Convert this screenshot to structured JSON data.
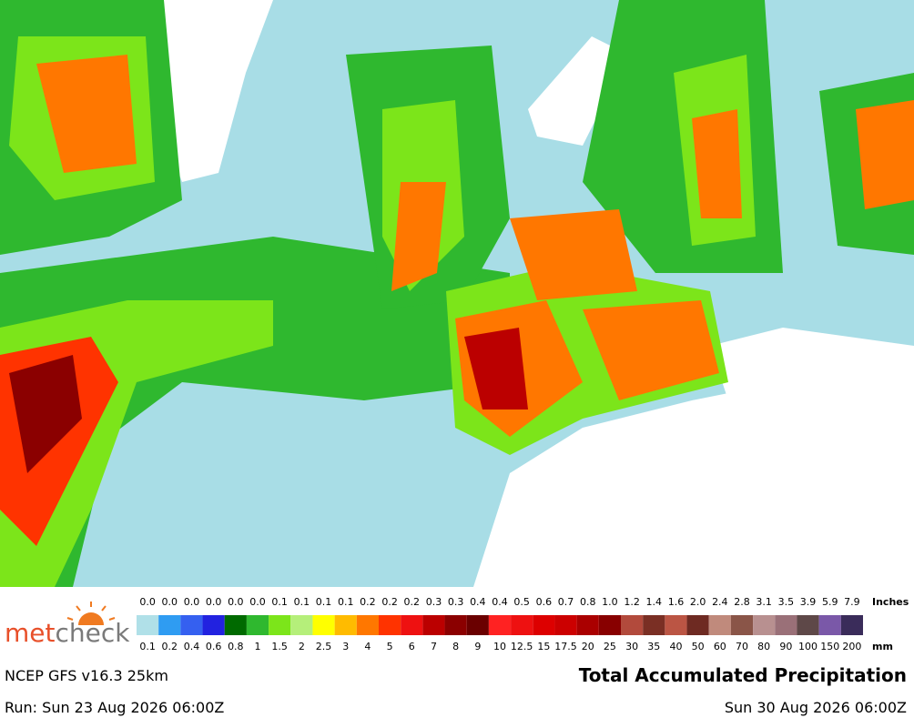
{
  "logo": {
    "part1": "met",
    "part2": "check"
  },
  "legend": {
    "inches_title": "Inches",
    "mm_title": "mm",
    "inches": [
      "0.0",
      "0.0",
      "0.0",
      "0.0",
      "0.0",
      "0.0",
      "0.1",
      "0.1",
      "0.1",
      "0.1",
      "0.2",
      "0.2",
      "0.2",
      "0.3",
      "0.3",
      "0.4",
      "0.4",
      "0.5",
      "0.6",
      "0.7",
      "0.8",
      "1.0",
      "1.2",
      "1.4",
      "1.6",
      "2.0",
      "2.4",
      "2.8",
      "3.1",
      "3.5",
      "3.9",
      "5.9",
      "7.9"
    ],
    "mm": [
      "0.1",
      "0.2",
      "0.4",
      "0.6",
      "0.8",
      "1",
      "1.5",
      "2",
      "2.5",
      "3",
      "4",
      "5",
      "6",
      "7",
      "8",
      "9",
      "10",
      "12.5",
      "15",
      "17.5",
      "20",
      "25",
      "30",
      "35",
      "40",
      "50",
      "60",
      "70",
      "80",
      "90",
      "100",
      "150",
      "200"
    ],
    "colors": [
      "#b0e0e8",
      "#2f9cf2",
      "#3560f0",
      "#2222e0",
      "#006a00",
      "#2fb82f",
      "#7ce51a",
      "#b5ef7a",
      "#ffff00",
      "#ffbb00",
      "#ff7700",
      "#ff3300",
      "#ee1111",
      "#bb0000",
      "#8b0000",
      "#6a0000",
      "#ff2222",
      "#ee1111",
      "#dd0000",
      "#cc0000",
      "#aa0000",
      "#880000",
      "#b24a3c",
      "#7a2f24",
      "#bb5544",
      "#6e2a22",
      "#c08a7c",
      "#8a5548",
      "#b89090",
      "#9a7078",
      "#5e4848",
      "#7a58a8",
      "#3a2c5a"
    ]
  },
  "model": "NCEP GFS v16.3 25km",
  "title": "Total Accumulated Precipitation",
  "run": "Run: Sun 23 Aug 2026 06:00Z",
  "valid": "Sun 30 Aug 2026 06:00Z"
}
